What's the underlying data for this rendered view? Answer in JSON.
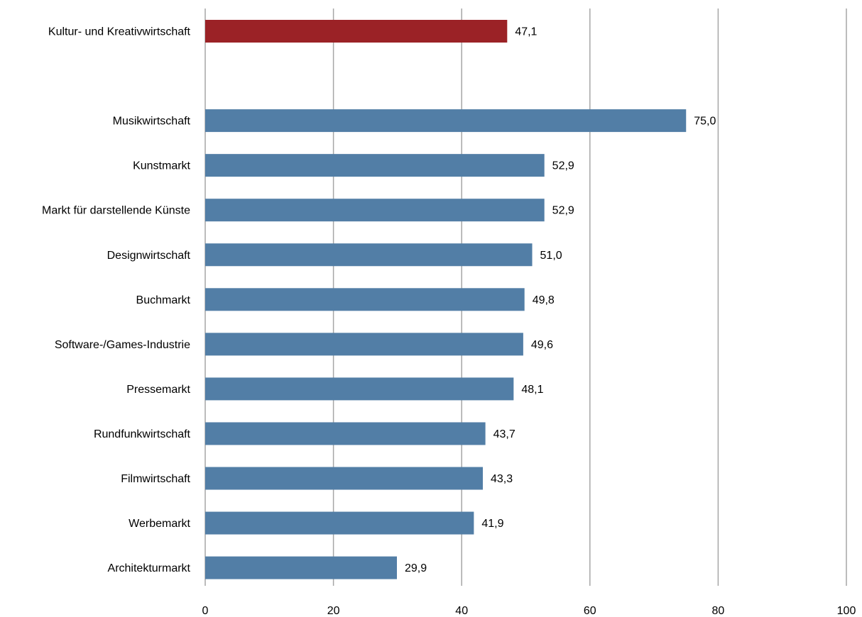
{
  "chart_data": {
    "type": "bar",
    "orientation": "horizontal",
    "title": "",
    "xlabel": "",
    "ylabel": "",
    "xlim": [
      0,
      100
    ],
    "xticks": [
      0,
      20,
      40,
      60,
      80,
      100
    ],
    "xtick_labels": [
      "0",
      "20",
      "40",
      "60",
      "80",
      "100"
    ],
    "grid": true,
    "legend": "none",
    "highlight_color": "#9B2226",
    "bar_color": "#527EA6",
    "grid_color": "#A6A6A6",
    "categories": [
      "Kultur- und Kreativwirtschaft",
      "",
      "Musikwirtschaft",
      "Kunstmarkt",
      "Markt für darstellende Künste",
      "Designwirtschaft",
      "Buchmarkt",
      "Software-/Games-Industrie",
      "Pressemarkt",
      "Rundfunkwirtschaft",
      "Filmwirtschaft",
      "Werbemarkt",
      "Architekturmarkt"
    ],
    "values": [
      47.1,
      null,
      75.0,
      52.9,
      52.9,
      51.0,
      49.8,
      49.6,
      48.1,
      43.7,
      43.3,
      41.9,
      29.9
    ],
    "value_labels": [
      "47,1",
      "",
      "75,0",
      "52,9",
      "52,9",
      "51,0",
      "49,8",
      "49,6",
      "48,1",
      "43,7",
      "43,3",
      "41,9",
      "29,9"
    ],
    "highlight": [
      true,
      false,
      false,
      false,
      false,
      false,
      false,
      false,
      false,
      false,
      false,
      false,
      false
    ]
  }
}
